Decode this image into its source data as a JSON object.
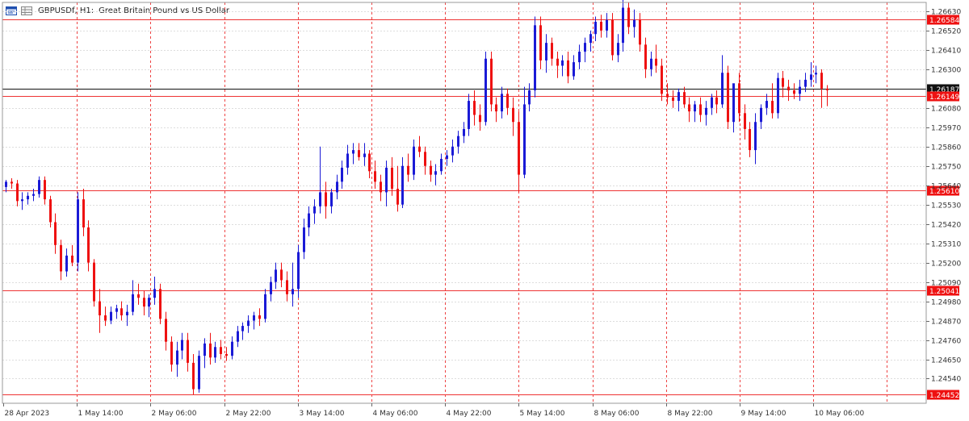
{
  "header": {
    "symbol": "GBPUSDf, H1:",
    "description": "Great Britain Pound vs US Dollar",
    "icon_left": "chart-window-icon",
    "icon_right": "symbol-grid-icon"
  },
  "colors": {
    "bull": "#1a1ad6",
    "bear": "#ee1111",
    "level_line": "#ee3333",
    "current_line": "#111111",
    "grid": "#dddddd",
    "session_sep": "#ee4444",
    "tag_red": "#ee1111",
    "tag_black": "#111111"
  },
  "chart_data": {
    "type": "candlestick",
    "title": "GBPUSDf, H1:  Great Britain Pound vs US Dollar",
    "ylim": [
      1.244,
      1.2668
    ],
    "y_ticks": [
      "1.26630",
      "1.26520",
      "1.26410",
      "1.26300",
      "1.26080",
      "1.25970",
      "1.25860",
      "1.25750",
      "1.25640",
      "1.25530",
      "1.25420",
      "1.25310",
      "1.25200",
      "1.25090",
      "1.24980",
      "1.24870",
      "1.24760",
      "1.24650",
      "1.24540"
    ],
    "x_ticks": [
      "28 Apr 2023",
      "1 May 14:00",
      "2 May 06:00",
      "2 May 22:00",
      "3 May 14:00",
      "4 May 06:00",
      "4 May 22:00",
      "5 May 14:00",
      "8 May 06:00",
      "8 May 22:00",
      "9 May 14:00",
      "10 May 06:00"
    ],
    "horizontal_levels": [
      {
        "label": "1.26584",
        "value": 1.26584,
        "kind": "level"
      },
      {
        "label": "1.26187",
        "value": 1.26187,
        "kind": "current"
      },
      {
        "label": "1.26149",
        "value": 1.26149,
        "kind": "level"
      },
      {
        "label": "1.25610",
        "value": 1.2561,
        "kind": "level"
      },
      {
        "label": "1.25041",
        "value": 1.25041,
        "kind": "level"
      },
      {
        "label": "1.24452",
        "value": 1.24452,
        "kind": "level"
      }
    ],
    "candles_ohlc": [
      [
        1.2563,
        1.2567,
        1.256,
        1.2566
      ],
      [
        1.2566,
        1.2568,
        1.2562,
        1.2565
      ],
      [
        1.2565,
        1.2567,
        1.2552,
        1.2555
      ],
      [
        1.2555,
        1.256,
        1.255,
        1.2556
      ],
      [
        1.2556,
        1.256,
        1.2553,
        1.2558
      ],
      [
        1.2558,
        1.2562,
        1.2555,
        1.2559
      ],
      [
        1.2559,
        1.2569,
        1.2557,
        1.2567
      ],
      [
        1.2567,
        1.2569,
        1.2553,
        1.2556
      ],
      [
        1.2556,
        1.2558,
        1.254,
        1.2543
      ],
      [
        1.2543,
        1.2548,
        1.2525,
        1.253
      ],
      [
        1.253,
        1.2533,
        1.251,
        1.2515
      ],
      [
        1.2515,
        1.2528,
        1.2512,
        1.2524
      ],
      [
        1.2524,
        1.253,
        1.2518,
        1.252
      ],
      [
        1.252,
        1.256,
        1.2515,
        1.2556
      ],
      [
        1.2556,
        1.2562,
        1.2535,
        1.254
      ],
      [
        1.254,
        1.2544,
        1.2515,
        1.252
      ],
      [
        1.252,
        1.2522,
        1.2495,
        1.2498
      ],
      [
        1.2498,
        1.2505,
        1.248,
        1.249
      ],
      [
        1.249,
        1.2495,
        1.2484,
        1.2487
      ],
      [
        1.2487,
        1.2495,
        1.2485,
        1.2492
      ],
      [
        1.2492,
        1.2496,
        1.2488,
        1.2494
      ],
      [
        1.2494,
        1.2498,
        1.2487,
        1.249
      ],
      [
        1.249,
        1.2496,
        1.2484,
        1.2492
      ],
      [
        1.2492,
        1.251,
        1.249,
        1.2502
      ],
      [
        1.2502,
        1.2508,
        1.2496,
        1.25
      ],
      [
        1.25,
        1.2504,
        1.249,
        1.2495
      ],
      [
        1.2495,
        1.2502,
        1.2489,
        1.25
      ],
      [
        1.25,
        1.2512,
        1.2496,
        1.2505
      ],
      [
        1.2505,
        1.2508,
        1.2485,
        1.2488
      ],
      [
        1.2488,
        1.2492,
        1.247,
        1.2475
      ],
      [
        1.2475,
        1.2478,
        1.2458,
        1.2462
      ],
      [
        1.2462,
        1.2475,
        1.2455,
        1.247
      ],
      [
        1.247,
        1.248,
        1.2465,
        1.2476
      ],
      [
        1.2476,
        1.248,
        1.2458,
        1.2463
      ],
      [
        1.2463,
        1.2468,
        1.2445,
        1.2448
      ],
      [
        1.2448,
        1.247,
        1.2446,
        1.2467
      ],
      [
        1.2467,
        1.2477,
        1.246,
        1.2474
      ],
      [
        1.2474,
        1.248,
        1.2462,
        1.2466
      ],
      [
        1.2466,
        1.2475,
        1.2463,
        1.2472
      ],
      [
        1.2472,
        1.2476,
        1.2465,
        1.2468
      ],
      [
        1.2468,
        1.2472,
        1.2464,
        1.2467
      ],
      [
        1.2467,
        1.2478,
        1.2465,
        1.2475
      ],
      [
        1.2475,
        1.2484,
        1.2472,
        1.2481
      ],
      [
        1.2481,
        1.2486,
        1.2476,
        1.2484
      ],
      [
        1.2484,
        1.249,
        1.248,
        1.2487
      ],
      [
        1.2487,
        1.2492,
        1.2482,
        1.249
      ],
      [
        1.249,
        1.2494,
        1.2484,
        1.2488
      ],
      [
        1.2488,
        1.2505,
        1.2486,
        1.2502
      ],
      [
        1.2502,
        1.2512,
        1.2498,
        1.2509
      ],
      [
        1.2509,
        1.252,
        1.2505,
        1.2516
      ],
      [
        1.2516,
        1.252,
        1.2506,
        1.251
      ],
      [
        1.251,
        1.2515,
        1.2498,
        1.2502
      ],
      [
        1.2502,
        1.252,
        1.2495,
        1.2505
      ],
      [
        1.2505,
        1.253,
        1.25,
        1.2526
      ],
      [
        1.2526,
        1.2545,
        1.2522,
        1.254
      ],
      [
        1.254,
        1.2552,
        1.2535,
        1.2548
      ],
      [
        1.2548,
        1.2556,
        1.2542,
        1.2552
      ],
      [
        1.2552,
        1.2586,
        1.2548,
        1.256
      ],
      [
        1.256,
        1.2566,
        1.2545,
        1.2552
      ],
      [
        1.2552,
        1.2562,
        1.2548,
        1.256
      ],
      [
        1.256,
        1.257,
        1.2556,
        1.2566
      ],
      [
        1.2566,
        1.2578,
        1.2562,
        1.2574
      ],
      [
        1.2574,
        1.2587,
        1.257,
        1.2582
      ],
      [
        1.2582,
        1.2588,
        1.2576,
        1.2584
      ],
      [
        1.2584,
        1.2588,
        1.2578,
        1.258
      ],
      [
        1.258,
        1.2588,
        1.2575,
        1.2582
      ],
      [
        1.2582,
        1.2584,
        1.2568,
        1.2572
      ],
      [
        1.2572,
        1.2578,
        1.2562,
        1.2566
      ],
      [
        1.2566,
        1.257,
        1.2555,
        1.256
      ],
      [
        1.256,
        1.2578,
        1.2552,
        1.2574
      ],
      [
        1.2574,
        1.258,
        1.2558,
        1.2562
      ],
      [
        1.2562,
        1.2575,
        1.2549,
        1.2553
      ],
      [
        1.2553,
        1.258,
        1.2551,
        1.2575
      ],
      [
        1.2575,
        1.2582,
        1.2566,
        1.257
      ],
      [
        1.257,
        1.259,
        1.2567,
        1.2586
      ],
      [
        1.2586,
        1.2592,
        1.258,
        1.2583
      ],
      [
        1.2583,
        1.2586,
        1.257,
        1.2575
      ],
      [
        1.2575,
        1.2578,
        1.2566,
        1.257
      ],
      [
        1.257,
        1.2576,
        1.2564,
        1.2572
      ],
      [
        1.2572,
        1.2582,
        1.257,
        1.2579
      ],
      [
        1.2579,
        1.2584,
        1.2575,
        1.2581
      ],
      [
        1.2581,
        1.259,
        1.2577,
        1.2586
      ],
      [
        1.2586,
        1.2595,
        1.2582,
        1.2592
      ],
      [
        1.2592,
        1.26,
        1.2588,
        1.2596
      ],
      [
        1.2596,
        1.2616,
        1.2592,
        1.2612
      ],
      [
        1.2612,
        1.2618,
        1.2598,
        1.2604
      ],
      [
        1.2604,
        1.261,
        1.2595,
        1.26
      ],
      [
        1.26,
        1.264,
        1.2598,
        1.2636
      ],
      [
        1.2636,
        1.264,
        1.2606,
        1.261
      ],
      [
        1.261,
        1.2614,
        1.26,
        1.2606
      ],
      [
        1.2606,
        1.262,
        1.2602,
        1.2616
      ],
      [
        1.2616,
        1.2619,
        1.2604,
        1.2608
      ],
      [
        1.2608,
        1.2614,
        1.2592,
        1.26
      ],
      [
        1.26,
        1.2606,
        1.256,
        1.257
      ],
      [
        1.257,
        1.262,
        1.2568,
        1.261
      ],
      [
        1.261,
        1.2622,
        1.2606,
        1.2618
      ],
      [
        1.2618,
        1.266,
        1.2614,
        1.2655
      ],
      [
        1.2655,
        1.266,
        1.263,
        1.2635
      ],
      [
        1.2635,
        1.265,
        1.2628,
        1.2645
      ],
      [
        1.2645,
        1.2648,
        1.2632,
        1.2636
      ],
      [
        1.2636,
        1.264,
        1.2625,
        1.2632
      ],
      [
        1.2632,
        1.2638,
        1.2626,
        1.2635
      ],
      [
        1.2635,
        1.264,
        1.2622,
        1.2626
      ],
      [
        1.2626,
        1.2638,
        1.2624,
        1.2634
      ],
      [
        1.2634,
        1.2644,
        1.263,
        1.264
      ],
      [
        1.264,
        1.2648,
        1.2634,
        1.2645
      ],
      [
        1.2645,
        1.2652,
        1.264,
        1.265
      ],
      [
        1.265,
        1.266,
        1.2646,
        1.2657
      ],
      [
        1.2657,
        1.2661,
        1.2648,
        1.2652
      ],
      [
        1.2652,
        1.2662,
        1.2648,
        1.2658
      ],
      [
        1.2658,
        1.2662,
        1.2635,
        1.2638
      ],
      [
        1.2638,
        1.265,
        1.2634,
        1.2645
      ],
      [
        1.2645,
        1.267,
        1.264,
        1.2665
      ],
      [
        1.2665,
        1.2668,
        1.265,
        1.2654
      ],
      [
        1.2654,
        1.2664,
        1.2648,
        1.2658
      ],
      [
        1.2658,
        1.2662,
        1.264,
        1.2644
      ],
      [
        1.2644,
        1.2648,
        1.2625,
        1.263
      ],
      [
        1.263,
        1.264,
        1.2626,
        1.2636
      ],
      [
        1.2636,
        1.2644,
        1.2628,
        1.2632
      ],
      [
        1.2632,
        1.2636,
        1.2612,
        1.2616
      ],
      [
        1.2616,
        1.2622,
        1.261,
        1.2614
      ],
      [
        1.2614,
        1.2618,
        1.2608,
        1.2612
      ],
      [
        1.2612,
        1.2619,
        1.2606,
        1.2617
      ],
      [
        1.2617,
        1.262,
        1.2608,
        1.261
      ],
      [
        1.261,
        1.2614,
        1.26,
        1.2606
      ],
      [
        1.2606,
        1.2612,
        1.26,
        1.261
      ],
      [
        1.261,
        1.2614,
        1.26,
        1.2604
      ],
      [
        1.2604,
        1.2612,
        1.2598,
        1.2608
      ],
      [
        1.2608,
        1.2616,
        1.2604,
        1.2614
      ],
      [
        1.2614,
        1.2618,
        1.2605,
        1.261
      ],
      [
        1.261,
        1.2638,
        1.2608,
        1.2628
      ],
      [
        1.2628,
        1.2632,
        1.2596,
        1.26
      ],
      [
        1.26,
        1.262,
        1.2594,
        1.2622
      ],
      [
        1.2622,
        1.2628,
        1.26,
        1.2605
      ],
      [
        1.2605,
        1.261,
        1.259,
        1.2596
      ],
      [
        1.2596,
        1.26,
        1.258,
        1.2584
      ],
      [
        1.2584,
        1.2605,
        1.2576,
        1.26
      ],
      [
        1.26,
        1.261,
        1.2596,
        1.2608
      ],
      [
        1.2608,
        1.2616,
        1.2604,
        1.2612
      ],
      [
        1.2612,
        1.2622,
        1.2602,
        1.2605
      ],
      [
        1.2605,
        1.2628,
        1.2602,
        1.2625
      ],
      [
        1.2625,
        1.2629,
        1.2614,
        1.262
      ],
      [
        1.262,
        1.2624,
        1.2612,
        1.2618
      ],
      [
        1.2618,
        1.2622,
        1.2613,
        1.2616
      ],
      [
        1.2616,
        1.2624,
        1.2612,
        1.262
      ],
      [
        1.262,
        1.2628,
        1.2617,
        1.2624
      ],
      [
        1.2624,
        1.2634,
        1.262,
        1.2627
      ],
      [
        1.2627,
        1.2632,
        1.2622,
        1.2628
      ],
      [
        1.2628,
        1.263,
        1.2608,
        1.2619
      ],
      [
        1.2619,
        1.2621,
        1.2609,
        1.2618
      ]
    ]
  }
}
